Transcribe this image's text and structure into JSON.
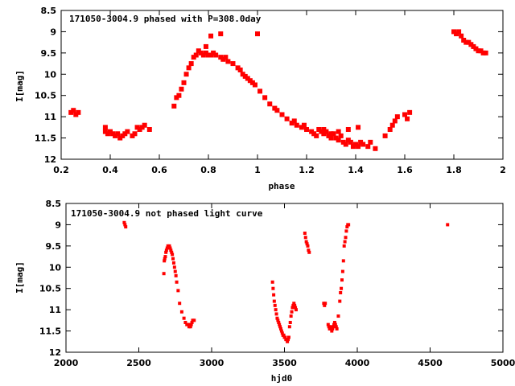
{
  "chart_data": [
    {
      "type": "scatter",
      "title": "171050-3004.9 phased with P=308.0day",
      "xlabel": "phase",
      "ylabel": "I[mag]",
      "xlim": [
        0.2,
        2.0
      ],
      "ylim": [
        8.5,
        12.0
      ],
      "y_inverted": true,
      "xticks": [
        "0.2",
        "0.4",
        "0.6",
        "0.8",
        "1",
        "1.2",
        "1.4",
        "1.6",
        "1.8",
        "2"
      ],
      "yticks": [
        "8.5",
        "9",
        "9.5",
        "10",
        "10.5",
        "11",
        "11.5",
        "12"
      ],
      "grid": false,
      "marker_color": "#ff0000",
      "series": [
        {
          "x": [
            0.24,
            0.25,
            0.26,
            0.27,
            0.38,
            0.38,
            0.39,
            0.4,
            0.41,
            0.42,
            0.43,
            0.44,
            0.45,
            0.46,
            0.47,
            0.49,
            0.5,
            0.51,
            0.52,
            0.53,
            0.54,
            0.56,
            0.66,
            0.67,
            0.68,
            0.69,
            0.7,
            0.71,
            0.72,
            0.73,
            0.74,
            0.75,
            0.76,
            0.77,
            0.78,
            0.79,
            0.8,
            0.81,
            0.82,
            0.83,
            0.85,
            0.86,
            0.87,
            0.88,
            0.9,
            0.92,
            0.93,
            0.94,
            0.95,
            0.96,
            0.97,
            0.98,
            0.99,
            1.01,
            1.03,
            1.05,
            1.07,
            1.08,
            1.1,
            1.12,
            1.14,
            1.15,
            1.16,
            1.18,
            1.19,
            1.2,
            1.22,
            1.23,
            1.24,
            1.25,
            1.26,
            1.27,
            1.28,
            1.29,
            1.3,
            1.31,
            1.32,
            1.33,
            1.34,
            1.35,
            1.36,
            1.37,
            1.38,
            1.39,
            1.4,
            1.41,
            1.42,
            1.43,
            1.45,
            1.46,
            1.48,
            1.52,
            1.54,
            1.55,
            1.56,
            1.57,
            1.6,
            1.61,
            1.62,
            1.8,
            1.81,
            1.82,
            1.83,
            1.84,
            1.85,
            1.86,
            1.87,
            1.88,
            1.89,
            1.9,
            1.91,
            1.92,
            1.93,
            0.79,
            0.81,
            0.85,
            1.0,
            1.37,
            1.33,
            1.41,
            1.3,
            1.27
          ],
          "y": [
            10.9,
            10.85,
            10.95,
            10.9,
            11.35,
            11.25,
            11.4,
            11.35,
            11.4,
            11.45,
            11.4,
            11.5,
            11.45,
            11.4,
            11.35,
            11.45,
            11.4,
            11.25,
            11.3,
            11.25,
            11.2,
            11.3,
            10.75,
            10.55,
            10.5,
            10.35,
            10.2,
            10.0,
            9.85,
            9.75,
            9.6,
            9.55,
            9.45,
            9.5,
            9.55,
            9.5,
            9.55,
            9.55,
            9.5,
            9.55,
            9.6,
            9.65,
            9.6,
            9.7,
            9.75,
            9.85,
            9.9,
            10.0,
            10.05,
            10.1,
            10.15,
            10.2,
            10.25,
            10.4,
            10.55,
            10.7,
            10.8,
            10.85,
            10.95,
            11.05,
            11.15,
            11.1,
            11.2,
            11.25,
            11.2,
            11.3,
            11.35,
            11.4,
            11.45,
            11.3,
            11.35,
            11.4,
            11.35,
            11.45,
            11.5,
            11.4,
            11.5,
            11.55,
            11.45,
            11.6,
            11.65,
            11.55,
            11.6,
            11.7,
            11.65,
            11.7,
            11.6,
            11.65,
            11.7,
            11.6,
            11.75,
            11.45,
            11.3,
            11.2,
            11.1,
            11.0,
            10.95,
            11.05,
            10.9,
            9.0,
            9.05,
            9.0,
            9.1,
            9.2,
            9.25,
            9.25,
            9.3,
            9.35,
            9.4,
            9.45,
            9.45,
            9.5,
            9.5,
            9.35,
            9.1,
            9.05,
            9.05,
            11.3,
            11.35,
            11.25,
            11.4,
            11.3
          ]
        }
      ]
    },
    {
      "type": "scatter",
      "title": "171050-3004.9 not phased light curve",
      "xlabel": "hjd0",
      "ylabel": "I[mag]",
      "xlim": [
        2000,
        5000
      ],
      "ylim": [
        8.5,
        12.0
      ],
      "y_inverted": true,
      "xticks": [
        "2000",
        "2500",
        "3000",
        "3500",
        "4000",
        "4500",
        "5000"
      ],
      "yticks": [
        "8.5",
        "9",
        "9.5",
        "10",
        "10.5",
        "11",
        "11.5",
        "12"
      ],
      "grid": false,
      "marker_color": "#ff0000",
      "series": [
        {
          "x": [
            2400,
            2405,
            2410,
            2672,
            2675,
            2678,
            2682,
            2686,
            2690,
            2695,
            2700,
            2705,
            2710,
            2715,
            2720,
            2725,
            2730,
            2735,
            2740,
            2745,
            2750,
            2755,
            2760,
            2770,
            2780,
            2795,
            2810,
            2820,
            2830,
            2840,
            2845,
            2850,
            2855,
            2860,
            2865,
            2870,
            2880,
            3418,
            3422,
            3426,
            3430,
            3435,
            3440,
            3445,
            3450,
            3455,
            3460,
            3465,
            3470,
            3475,
            3480,
            3485,
            3490,
            3495,
            3500,
            3505,
            3510,
            3515,
            3520,
            3525,
            3530,
            3535,
            3540,
            3545,
            3550,
            3555,
            3560,
            3565,
            3570,
            3575,
            3580,
            3640,
            3645,
            3650,
            3655,
            3660,
            3665,
            3670,
            3770,
            3775,
            3780,
            3800,
            3805,
            3810,
            3815,
            3820,
            3825,
            3830,
            3835,
            3840,
            3845,
            3850,
            3855,
            3860,
            3870,
            3880,
            3885,
            3890,
            3895,
            3900,
            3905,
            3910,
            3915,
            3920,
            3925,
            3930,
            3935,
            3940,
            4620
          ],
          "y": [
            8.95,
            9.0,
            9.05,
            10.15,
            9.85,
            9.8,
            9.75,
            9.65,
            9.6,
            9.55,
            9.5,
            9.55,
            9.5,
            9.55,
            9.6,
            9.65,
            9.7,
            9.8,
            9.9,
            10.0,
            10.1,
            10.2,
            10.35,
            10.55,
            10.85,
            11.05,
            11.2,
            11.3,
            11.35,
            11.35,
            11.4,
            11.35,
            11.4,
            11.35,
            11.3,
            11.25,
            11.25,
            10.35,
            10.5,
            10.65,
            10.8,
            10.9,
            11.0,
            11.1,
            11.2,
            11.25,
            11.3,
            11.35,
            11.4,
            11.45,
            11.5,
            11.55,
            11.6,
            11.6,
            11.65,
            11.65,
            11.7,
            11.7,
            11.75,
            11.7,
            11.65,
            11.4,
            11.3,
            11.15,
            11.05,
            10.95,
            10.9,
            10.85,
            10.9,
            10.95,
            11.0,
            9.2,
            9.3,
            9.4,
            9.45,
            9.5,
            9.6,
            9.65,
            10.85,
            10.9,
            10.85,
            11.35,
            11.4,
            11.45,
            11.4,
            11.45,
            11.5,
            11.45,
            11.4,
            11.35,
            11.3,
            11.35,
            11.4,
            11.45,
            11.15,
            10.8,
            10.6,
            10.5,
            10.3,
            10.1,
            9.85,
            9.5,
            9.4,
            9.3,
            9.15,
            9.05,
            9.0,
            9.0,
            9.0
          ]
        }
      ]
    }
  ]
}
